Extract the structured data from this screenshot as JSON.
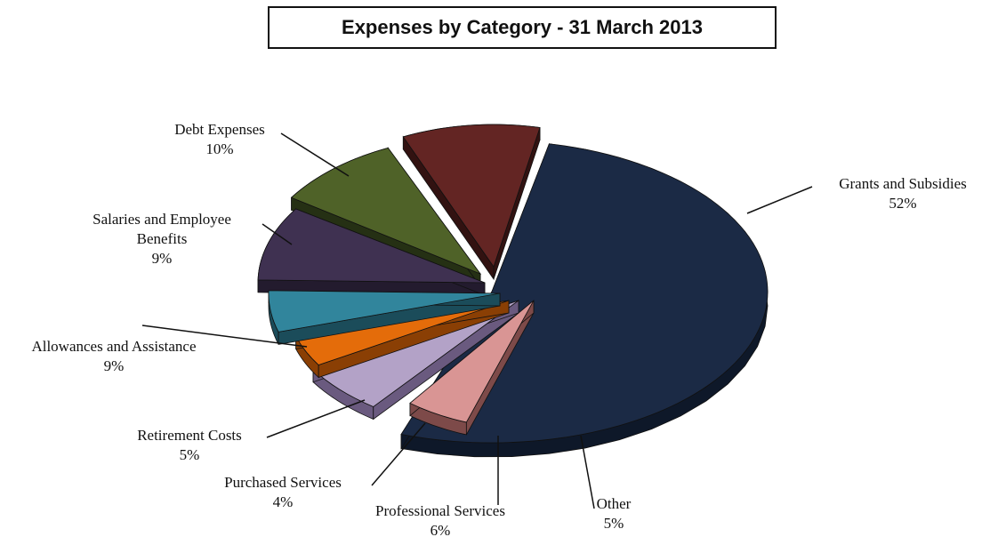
{
  "chart_data": {
    "type": "pie",
    "title": "Expenses by Category - 31 March 2013",
    "slices": [
      {
        "label_lines": [
          "Grants and Subsidies"
        ],
        "percent_label": "52%",
        "value": 52,
        "color": "#1b2a45",
        "side_color": "#0e1829"
      },
      {
        "label_lines": [
          "Other"
        ],
        "percent_label": "5%",
        "value": 5,
        "color": "#d99594",
        "side_color": "#7d4a49"
      },
      {
        "label_lines": [
          "Professional Services"
        ],
        "percent_label": "6%",
        "value": 6,
        "color": "#b3a2c7",
        "side_color": "#6a5a7f"
      },
      {
        "label_lines": [
          "Purchased Services"
        ],
        "percent_label": "4%",
        "value": 4,
        "color": "#e46c0a",
        "side_color": "#8a3f04"
      },
      {
        "label_lines": [
          "Retirement Costs"
        ],
        "percent_label": "5%",
        "value": 5,
        "color": "#31859c",
        "side_color": "#1b4c5a"
      },
      {
        "label_lines": [
          "Allowances and Assistance"
        ],
        "percent_label": "9%",
        "value": 9,
        "color": "#3f3151",
        "side_color": "#231b2e"
      },
      {
        "label_lines": [
          "Salaries and Employee",
          "Benefits"
        ],
        "percent_label": "9%",
        "value": 9,
        "color": "#4f6228",
        "side_color": "#253014"
      },
      {
        "label_lines": [
          "Debt Expenses"
        ],
        "percent_label": "10%",
        "value": 10,
        "color": "#632523",
        "side_color": "#321211"
      }
    ]
  }
}
